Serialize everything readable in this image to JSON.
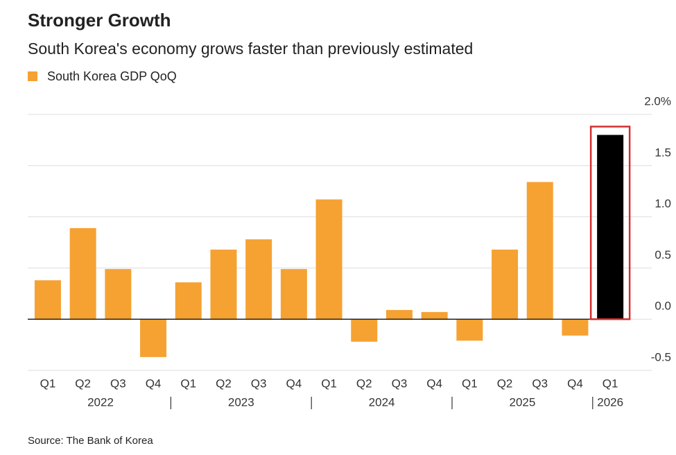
{
  "chart_data": {
    "type": "bar",
    "title": "Stronger Growth",
    "subtitle": "South Korea's economy grows faster than previously estimated",
    "source": "Source: The Bank of Korea",
    "categories": [
      "Q1",
      "Q2",
      "Q3",
      "Q4",
      "Q1",
      "Q2",
      "Q3",
      "Q4",
      "Q1",
      "Q2",
      "Q3",
      "Q4",
      "Q1",
      "Q2",
      "Q3",
      "Q4",
      "Q1"
    ],
    "years": [
      "2022",
      "2023",
      "2024",
      "2025",
      "2026"
    ],
    "series": [
      {
        "name": "South Korea GDP QoQ",
        "color": "#f5a233",
        "values": [
          0.38,
          0.89,
          0.49,
          -0.37,
          0.36,
          0.68,
          0.78,
          0.49,
          1.17,
          -0.22,
          0.09,
          0.07,
          -0.21,
          0.68,
          1.34,
          -0.16,
          1.8
        ],
        "colors": [
          "#f5a233",
          "#f5a233",
          "#f5a233",
          "#f5a233",
          "#f5a233",
          "#f5a233",
          "#f5a233",
          "#f5a233",
          "#f5a233",
          "#f5a233",
          "#f5a233",
          "#f5a233",
          "#f5a233",
          "#f5a233",
          "#f5a233",
          "#f5a233",
          "#000000"
        ]
      }
    ],
    "ylim": [
      -0.5,
      2.0
    ],
    "yticks": [
      {
        "value": 2.0,
        "label": "2.0%"
      },
      {
        "value": 1.5,
        "label": "1.5"
      },
      {
        "value": 1.0,
        "label": "1.0"
      },
      {
        "value": 0.5,
        "label": "0.5"
      },
      {
        "value": 0,
        "label": "0.0"
      },
      -0.5
    ],
    "grid": true
  }
}
